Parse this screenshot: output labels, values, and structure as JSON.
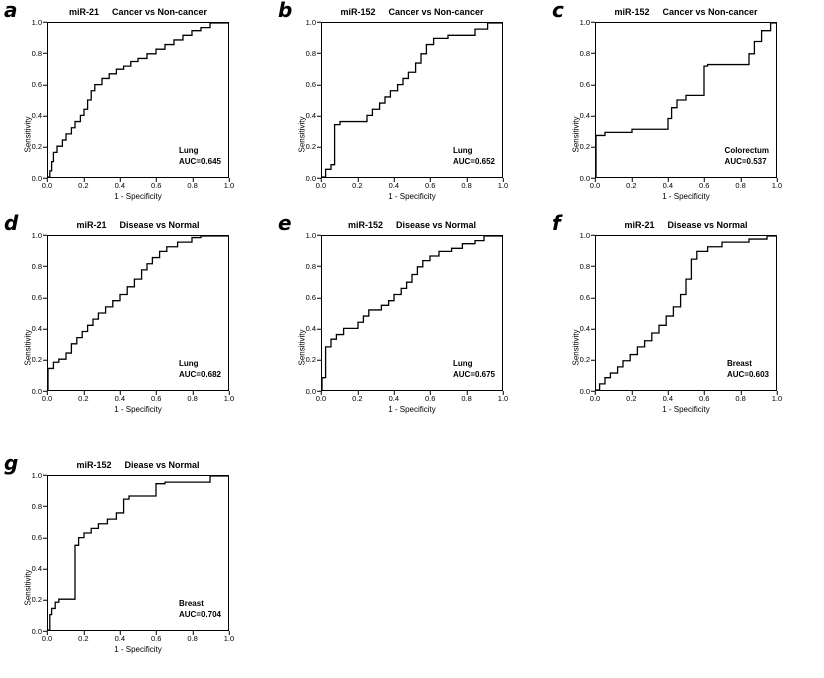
{
  "figure": {
    "ticks": [
      "0.0",
      "0.2",
      "0.4",
      "0.6",
      "0.8",
      "1.0"
    ],
    "line_color": "#000000",
    "xlabel": "1 - Specificity",
    "ylabel": "Sensitivity"
  },
  "chart_data": [
    {
      "type": "line",
      "panel": "a",
      "title_marker": "miR-21",
      "title_comparison": "Cancer vs Non-cancer",
      "annotation_site": "Lung",
      "annotation_auc": "AUC=0.645",
      "xlabel": "1 - Specificity",
      "ylabel": "Sensitivity",
      "xlim": [
        0,
        1
      ],
      "ylim": [
        0,
        1
      ],
      "points": [
        [
          0,
          0
        ],
        [
          0.01,
          0
        ],
        [
          0.01,
          0.04
        ],
        [
          0.02,
          0.04
        ],
        [
          0.02,
          0.1
        ],
        [
          0.03,
          0.1
        ],
        [
          0.03,
          0.16
        ],
        [
          0.05,
          0.16
        ],
        [
          0.05,
          0.2
        ],
        [
          0.08,
          0.2
        ],
        [
          0.08,
          0.24
        ],
        [
          0.1,
          0.24
        ],
        [
          0.1,
          0.28
        ],
        [
          0.13,
          0.28
        ],
        [
          0.13,
          0.32
        ],
        [
          0.15,
          0.32
        ],
        [
          0.15,
          0.36
        ],
        [
          0.18,
          0.36
        ],
        [
          0.18,
          0.4
        ],
        [
          0.2,
          0.4
        ],
        [
          0.2,
          0.44
        ],
        [
          0.22,
          0.44
        ],
        [
          0.22,
          0.5
        ],
        [
          0.24,
          0.5
        ],
        [
          0.24,
          0.56
        ],
        [
          0.26,
          0.56
        ],
        [
          0.26,
          0.6
        ],
        [
          0.3,
          0.6
        ],
        [
          0.3,
          0.64
        ],
        [
          0.34,
          0.64
        ],
        [
          0.34,
          0.67
        ],
        [
          0.38,
          0.67
        ],
        [
          0.38,
          0.7
        ],
        [
          0.42,
          0.7
        ],
        [
          0.42,
          0.72
        ],
        [
          0.46,
          0.72
        ],
        [
          0.46,
          0.75
        ],
        [
          0.5,
          0.75
        ],
        [
          0.5,
          0.77
        ],
        [
          0.55,
          0.77
        ],
        [
          0.55,
          0.8
        ],
        [
          0.6,
          0.8
        ],
        [
          0.6,
          0.83
        ],
        [
          0.65,
          0.83
        ],
        [
          0.65,
          0.86
        ],
        [
          0.7,
          0.86
        ],
        [
          0.7,
          0.89
        ],
        [
          0.75,
          0.89
        ],
        [
          0.75,
          0.92
        ],
        [
          0.8,
          0.92
        ],
        [
          0.8,
          0.95
        ],
        [
          0.85,
          0.95
        ],
        [
          0.85,
          0.97
        ],
        [
          0.9,
          0.97
        ],
        [
          0.9,
          1.0
        ],
        [
          1.0,
          1.0
        ]
      ]
    },
    {
      "type": "line",
      "panel": "b",
      "title_marker": "miR-152",
      "title_comparison": "Cancer vs Non-cancer",
      "annotation_site": "Lung",
      "annotation_auc": "AUC=0.652",
      "xlabel": "1 - Specificity",
      "ylabel": "Sensitivity",
      "xlim": [
        0,
        1
      ],
      "ylim": [
        0,
        1
      ],
      "points": [
        [
          0,
          0
        ],
        [
          0.02,
          0
        ],
        [
          0.02,
          0.05
        ],
        [
          0.05,
          0.05
        ],
        [
          0.05,
          0.08
        ],
        [
          0.07,
          0.08
        ],
        [
          0.07,
          0.34
        ],
        [
          0.1,
          0.34
        ],
        [
          0.1,
          0.36
        ],
        [
          0.25,
          0.36
        ],
        [
          0.25,
          0.4
        ],
        [
          0.28,
          0.4
        ],
        [
          0.28,
          0.44
        ],
        [
          0.32,
          0.44
        ],
        [
          0.32,
          0.48
        ],
        [
          0.35,
          0.48
        ],
        [
          0.35,
          0.52
        ],
        [
          0.38,
          0.52
        ],
        [
          0.38,
          0.56
        ],
        [
          0.42,
          0.56
        ],
        [
          0.42,
          0.6
        ],
        [
          0.45,
          0.6
        ],
        [
          0.45,
          0.64
        ],
        [
          0.48,
          0.64
        ],
        [
          0.48,
          0.68
        ],
        [
          0.52,
          0.68
        ],
        [
          0.52,
          0.74
        ],
        [
          0.55,
          0.74
        ],
        [
          0.55,
          0.8
        ],
        [
          0.58,
          0.8
        ],
        [
          0.58,
          0.86
        ],
        [
          0.62,
          0.86
        ],
        [
          0.62,
          0.9
        ],
        [
          0.7,
          0.9
        ],
        [
          0.7,
          0.92
        ],
        [
          0.85,
          0.92
        ],
        [
          0.85,
          0.96
        ],
        [
          0.92,
          0.96
        ],
        [
          0.92,
          1.0
        ],
        [
          1.0,
          1.0
        ]
      ]
    },
    {
      "type": "line",
      "panel": "c",
      "title_marker": "miR-152",
      "title_comparison": "Cancer vs Non-cancer",
      "annotation_site": "Colorectum",
      "annotation_auc": "AUC=0.537",
      "xlabel": "1 - Specificity",
      "ylabel": "Sensitivity",
      "xlim": [
        0,
        1
      ],
      "ylim": [
        0,
        1
      ],
      "points": [
        [
          0,
          0
        ],
        [
          0,
          0.27
        ],
        [
          0.05,
          0.27
        ],
        [
          0.05,
          0.29
        ],
        [
          0.2,
          0.29
        ],
        [
          0.2,
          0.31
        ],
        [
          0.4,
          0.31
        ],
        [
          0.4,
          0.38
        ],
        [
          0.42,
          0.38
        ],
        [
          0.42,
          0.45
        ],
        [
          0.45,
          0.45
        ],
        [
          0.45,
          0.5
        ],
        [
          0.5,
          0.5
        ],
        [
          0.5,
          0.53
        ],
        [
          0.6,
          0.53
        ],
        [
          0.6,
          0.72
        ],
        [
          0.62,
          0.72
        ],
        [
          0.62,
          0.73
        ],
        [
          0.85,
          0.73
        ],
        [
          0.85,
          0.8
        ],
        [
          0.88,
          0.8
        ],
        [
          0.88,
          0.88
        ],
        [
          0.92,
          0.88
        ],
        [
          0.92,
          0.95
        ],
        [
          0.97,
          0.95
        ],
        [
          0.97,
          1.0
        ],
        [
          1.0,
          1.0
        ]
      ]
    },
    {
      "type": "line",
      "panel": "d",
      "title_marker": "miR-21",
      "title_comparison": "Disease vs Normal",
      "annotation_site": "Lung",
      "annotation_auc": "AUC=0.682",
      "xlabel": "1 - Specificity",
      "ylabel": "Sensitivity",
      "xlim": [
        0,
        1
      ],
      "ylim": [
        0,
        1
      ],
      "points": [
        [
          0,
          0
        ],
        [
          0,
          0.14
        ],
        [
          0.03,
          0.14
        ],
        [
          0.03,
          0.18
        ],
        [
          0.06,
          0.18
        ],
        [
          0.06,
          0.2
        ],
        [
          0.1,
          0.2
        ],
        [
          0.1,
          0.24
        ],
        [
          0.13,
          0.24
        ],
        [
          0.13,
          0.3
        ],
        [
          0.16,
          0.3
        ],
        [
          0.16,
          0.34
        ],
        [
          0.19,
          0.34
        ],
        [
          0.19,
          0.38
        ],
        [
          0.22,
          0.38
        ],
        [
          0.22,
          0.42
        ],
        [
          0.25,
          0.42
        ],
        [
          0.25,
          0.46
        ],
        [
          0.28,
          0.46
        ],
        [
          0.28,
          0.5
        ],
        [
          0.32,
          0.5
        ],
        [
          0.32,
          0.54
        ],
        [
          0.36,
          0.54
        ],
        [
          0.36,
          0.58
        ],
        [
          0.4,
          0.58
        ],
        [
          0.4,
          0.62
        ],
        [
          0.44,
          0.62
        ],
        [
          0.44,
          0.67
        ],
        [
          0.48,
          0.67
        ],
        [
          0.48,
          0.72
        ],
        [
          0.52,
          0.72
        ],
        [
          0.52,
          0.78
        ],
        [
          0.55,
          0.78
        ],
        [
          0.55,
          0.82
        ],
        [
          0.58,
          0.82
        ],
        [
          0.58,
          0.86
        ],
        [
          0.62,
          0.86
        ],
        [
          0.62,
          0.9
        ],
        [
          0.66,
          0.9
        ],
        [
          0.66,
          0.93
        ],
        [
          0.72,
          0.93
        ],
        [
          0.72,
          0.96
        ],
        [
          0.8,
          0.96
        ],
        [
          0.8,
          0.99
        ],
        [
          0.85,
          0.99
        ],
        [
          0.85,
          1.0
        ],
        [
          1.0,
          1.0
        ]
      ]
    },
    {
      "type": "line",
      "panel": "e",
      "title_marker": "miR-152",
      "title_comparison": "Disease vs Normal",
      "annotation_site": "Lung",
      "annotation_auc": "AUC=0.675",
      "xlabel": "1 - Specificity",
      "ylabel": "Sensitivity",
      "xlim": [
        0,
        1
      ],
      "ylim": [
        0,
        1
      ],
      "points": [
        [
          0,
          0
        ],
        [
          0,
          0.08
        ],
        [
          0.02,
          0.08
        ],
        [
          0.02,
          0.28
        ],
        [
          0.05,
          0.28
        ],
        [
          0.05,
          0.33
        ],
        [
          0.08,
          0.33
        ],
        [
          0.08,
          0.36
        ],
        [
          0.12,
          0.36
        ],
        [
          0.12,
          0.4
        ],
        [
          0.2,
          0.4
        ],
        [
          0.2,
          0.44
        ],
        [
          0.23,
          0.44
        ],
        [
          0.23,
          0.48
        ],
        [
          0.26,
          0.48
        ],
        [
          0.26,
          0.52
        ],
        [
          0.33,
          0.52
        ],
        [
          0.33,
          0.55
        ],
        [
          0.37,
          0.55
        ],
        [
          0.37,
          0.58
        ],
        [
          0.4,
          0.58
        ],
        [
          0.4,
          0.62
        ],
        [
          0.44,
          0.62
        ],
        [
          0.44,
          0.66
        ],
        [
          0.47,
          0.66
        ],
        [
          0.47,
          0.7
        ],
        [
          0.5,
          0.7
        ],
        [
          0.5,
          0.75
        ],
        [
          0.53,
          0.75
        ],
        [
          0.53,
          0.8
        ],
        [
          0.56,
          0.8
        ],
        [
          0.56,
          0.84
        ],
        [
          0.6,
          0.84
        ],
        [
          0.6,
          0.87
        ],
        [
          0.65,
          0.87
        ],
        [
          0.65,
          0.9
        ],
        [
          0.72,
          0.9
        ],
        [
          0.72,
          0.92
        ],
        [
          0.78,
          0.92
        ],
        [
          0.78,
          0.95
        ],
        [
          0.85,
          0.95
        ],
        [
          0.85,
          0.97
        ],
        [
          0.9,
          0.97
        ],
        [
          0.9,
          1.0
        ],
        [
          1.0,
          1.0
        ]
      ]
    },
    {
      "type": "line",
      "panel": "f",
      "title_marker": "miR-21",
      "title_comparison": "Disease vs Normal",
      "annotation_site": "Breast",
      "annotation_auc": "AUC=0.603",
      "xlabel": "1 - Specificity",
      "ylabel": "Sensitivity",
      "xlim": [
        0,
        1
      ],
      "ylim": [
        0,
        1
      ],
      "points": [
        [
          0,
          0
        ],
        [
          0.02,
          0
        ],
        [
          0.02,
          0.04
        ],
        [
          0.05,
          0.04
        ],
        [
          0.05,
          0.08
        ],
        [
          0.08,
          0.08
        ],
        [
          0.08,
          0.11
        ],
        [
          0.12,
          0.11
        ],
        [
          0.12,
          0.15
        ],
        [
          0.15,
          0.15
        ],
        [
          0.15,
          0.19
        ],
        [
          0.19,
          0.19
        ],
        [
          0.19,
          0.23
        ],
        [
          0.23,
          0.23
        ],
        [
          0.23,
          0.28
        ],
        [
          0.27,
          0.28
        ],
        [
          0.27,
          0.32
        ],
        [
          0.31,
          0.32
        ],
        [
          0.31,
          0.37
        ],
        [
          0.35,
          0.37
        ],
        [
          0.35,
          0.42
        ],
        [
          0.39,
          0.42
        ],
        [
          0.39,
          0.48
        ],
        [
          0.43,
          0.48
        ],
        [
          0.43,
          0.54
        ],
        [
          0.47,
          0.54
        ],
        [
          0.47,
          0.62
        ],
        [
          0.5,
          0.62
        ],
        [
          0.5,
          0.72
        ],
        [
          0.53,
          0.72
        ],
        [
          0.53,
          0.85
        ],
        [
          0.56,
          0.85
        ],
        [
          0.56,
          0.9
        ],
        [
          0.62,
          0.9
        ],
        [
          0.62,
          0.93
        ],
        [
          0.7,
          0.93
        ],
        [
          0.7,
          0.96
        ],
        [
          0.85,
          0.96
        ],
        [
          0.85,
          0.98
        ],
        [
          0.95,
          0.98
        ],
        [
          0.95,
          1.0
        ],
        [
          1.0,
          1.0
        ]
      ]
    },
    {
      "type": "line",
      "panel": "g",
      "title_marker": "miR-152",
      "title_comparison": "Diease vs Normal",
      "annotation_site": "Breast",
      "annotation_auc": "AUC=0.704",
      "xlabel": "1 - Specificity",
      "ylabel": "Sensitivity",
      "xlim": [
        0,
        1
      ],
      "ylim": [
        0,
        1
      ],
      "points": [
        [
          0,
          0
        ],
        [
          0.01,
          0
        ],
        [
          0.01,
          0.1
        ],
        [
          0.02,
          0.1
        ],
        [
          0.02,
          0.14
        ],
        [
          0.04,
          0.14
        ],
        [
          0.04,
          0.18
        ],
        [
          0.06,
          0.18
        ],
        [
          0.06,
          0.2
        ],
        [
          0.15,
          0.2
        ],
        [
          0.15,
          0.55
        ],
        [
          0.17,
          0.55
        ],
        [
          0.17,
          0.6
        ],
        [
          0.2,
          0.6
        ],
        [
          0.2,
          0.63
        ],
        [
          0.24,
          0.63
        ],
        [
          0.24,
          0.66
        ],
        [
          0.28,
          0.66
        ],
        [
          0.28,
          0.69
        ],
        [
          0.33,
          0.69
        ],
        [
          0.33,
          0.72
        ],
        [
          0.38,
          0.72
        ],
        [
          0.38,
          0.76
        ],
        [
          0.42,
          0.76
        ],
        [
          0.42,
          0.85
        ],
        [
          0.45,
          0.85
        ],
        [
          0.45,
          0.87
        ],
        [
          0.6,
          0.87
        ],
        [
          0.6,
          0.95
        ],
        [
          0.65,
          0.95
        ],
        [
          0.65,
          0.96
        ],
        [
          0.9,
          0.96
        ],
        [
          0.9,
          1.0
        ],
        [
          1.0,
          1.0
        ]
      ]
    }
  ]
}
